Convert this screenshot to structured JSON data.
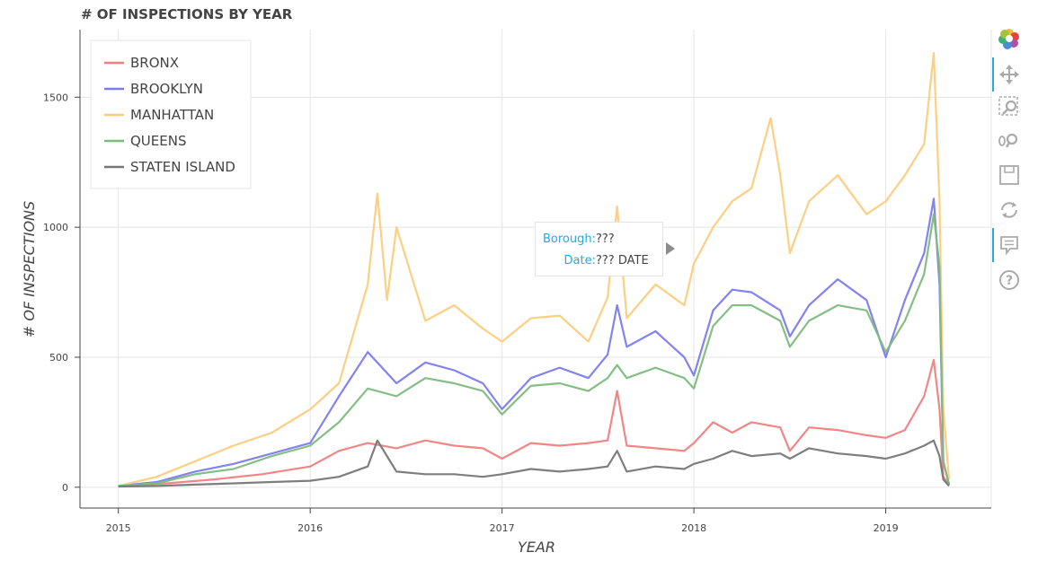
{
  "title": "# OF INSPECTIONS BY YEAR",
  "tooltip": {
    "borough_label": "Borough:",
    "borough_value": "???",
    "date_label": "Date:",
    "date_value": "??? DATE"
  },
  "toolbar": [
    "bokeh-logo-icon",
    "pan-icon",
    "box-zoom-icon",
    "wheel-zoom-icon",
    "save-icon",
    "reset-icon",
    "hover-icon",
    "help-icon"
  ],
  "chart_data": {
    "type": "line",
    "title": "# OF INSPECTIONS BY YEAR",
    "xlabel": "YEAR",
    "ylabel": "# OF INSPECTIONS",
    "x_ticks": [
      "2015",
      "2016",
      "2017",
      "2018",
      "2019"
    ],
    "y_ticks": [
      0,
      500,
      1000,
      1500
    ],
    "xlim": [
      2014.8,
      2019.55
    ],
    "ylim": [
      -80,
      1760
    ],
    "grid": true,
    "legend_position": "top-left",
    "series": [
      {
        "name": "BRONX",
        "color": "#f08080",
        "x": [
          2015.0,
          2015.25,
          2015.5,
          2015.75,
          2016.0,
          2016.15,
          2016.3,
          2016.45,
          2016.6,
          2016.75,
          2016.9,
          2017.0,
          2017.15,
          2017.3,
          2017.45,
          2017.55,
          2017.6,
          2017.65,
          2017.8,
          2017.95,
          2018.0,
          2018.1,
          2018.2,
          2018.3,
          2018.45,
          2018.5,
          2018.6,
          2018.75,
          2018.9,
          2019.0,
          2019.1,
          2019.2,
          2019.25,
          2019.28,
          2019.3,
          2019.33
        ],
        "values": [
          5,
          15,
          30,
          50,
          80,
          140,
          170,
          150,
          180,
          160,
          150,
          110,
          170,
          160,
          170,
          180,
          370,
          160,
          150,
          140,
          170,
          250,
          210,
          250,
          230,
          140,
          230,
          220,
          200,
          190,
          220,
          350,
          490,
          300,
          40,
          10
        ]
      },
      {
        "name": "BROOKLYN",
        "color": "#7b7bf0",
        "x": [
          2015.0,
          2015.2,
          2015.4,
          2015.6,
          2015.8,
          2016.0,
          2016.15,
          2016.3,
          2016.45,
          2016.6,
          2016.75,
          2016.9,
          2017.0,
          2017.15,
          2017.3,
          2017.45,
          2017.55,
          2017.6,
          2017.65,
          2017.8,
          2017.95,
          2018.0,
          2018.1,
          2018.2,
          2018.3,
          2018.45,
          2018.5,
          2018.6,
          2018.75,
          2018.9,
          2019.0,
          2019.1,
          2019.2,
          2019.25,
          2019.28,
          2019.3,
          2019.33
        ],
        "values": [
          5,
          20,
          60,
          90,
          130,
          170,
          350,
          520,
          400,
          480,
          450,
          400,
          300,
          420,
          460,
          420,
          510,
          700,
          540,
          600,
          500,
          430,
          680,
          760,
          750,
          680,
          580,
          700,
          800,
          720,
          500,
          720,
          900,
          1110,
          780,
          100,
          10
        ]
      },
      {
        "name": "MANHATTAN",
        "color": "#fdcc7b",
        "x": [
          2015.0,
          2015.2,
          2015.4,
          2015.6,
          2015.8,
          2016.0,
          2016.15,
          2016.3,
          2016.35,
          2016.4,
          2016.45,
          2016.6,
          2016.75,
          2016.9,
          2017.0,
          2017.15,
          2017.3,
          2017.45,
          2017.55,
          2017.6,
          2017.65,
          2017.8,
          2017.95,
          2018.0,
          2018.1,
          2018.2,
          2018.3,
          2018.4,
          2018.45,
          2018.5,
          2018.6,
          2018.75,
          2018.9,
          2019.0,
          2019.1,
          2019.2,
          2019.25,
          2019.28,
          2019.3,
          2019.33
        ],
        "values": [
          5,
          40,
          100,
          160,
          210,
          300,
          400,
          780,
          1130,
          720,
          1000,
          640,
          700,
          610,
          560,
          650,
          660,
          560,
          730,
          1080,
          650,
          780,
          700,
          860,
          1000,
          1100,
          1150,
          1420,
          1200,
          900,
          1100,
          1200,
          1050,
          1100,
          1200,
          1320,
          1670,
          1100,
          300,
          30
        ]
      },
      {
        "name": "QUEENS",
        "color": "#7ebb7e",
        "x": [
          2015.0,
          2015.2,
          2015.4,
          2015.6,
          2015.8,
          2016.0,
          2016.15,
          2016.3,
          2016.45,
          2016.6,
          2016.75,
          2016.9,
          2017.0,
          2017.15,
          2017.3,
          2017.45,
          2017.55,
          2017.6,
          2017.65,
          2017.8,
          2017.95,
          2018.0,
          2018.1,
          2018.2,
          2018.3,
          2018.45,
          2018.5,
          2018.6,
          2018.75,
          2018.9,
          2019.0,
          2019.1,
          2019.2,
          2019.25,
          2019.28,
          2019.3,
          2019.33
        ],
        "values": [
          5,
          15,
          50,
          70,
          120,
          160,
          250,
          380,
          350,
          420,
          400,
          370,
          280,
          390,
          400,
          370,
          420,
          470,
          420,
          460,
          420,
          380,
          620,
          700,
          700,
          640,
          540,
          640,
          700,
          680,
          520,
          640,
          820,
          1050,
          850,
          100,
          10
        ]
      },
      {
        "name": "STATEN ISLAND",
        "color": "#777777",
        "x": [
          2015.0,
          2015.2,
          2015.4,
          2015.6,
          2015.8,
          2016.0,
          2016.15,
          2016.3,
          2016.35,
          2016.45,
          2016.6,
          2016.75,
          2016.9,
          2017.0,
          2017.15,
          2017.3,
          2017.45,
          2017.55,
          2017.6,
          2017.65,
          2017.8,
          2017.95,
          2018.0,
          2018.1,
          2018.2,
          2018.3,
          2018.45,
          2018.5,
          2018.6,
          2018.75,
          2018.9,
          2019.0,
          2019.1,
          2019.2,
          2019.25,
          2019.28,
          2019.3,
          2019.33
        ],
        "values": [
          3,
          5,
          10,
          15,
          20,
          25,
          40,
          80,
          180,
          60,
          50,
          50,
          40,
          50,
          70,
          60,
          70,
          80,
          140,
          60,
          80,
          70,
          90,
          110,
          140,
          120,
          130,
          110,
          150,
          130,
          120,
          110,
          130,
          160,
          180,
          120,
          30,
          5
        ]
      }
    ]
  }
}
